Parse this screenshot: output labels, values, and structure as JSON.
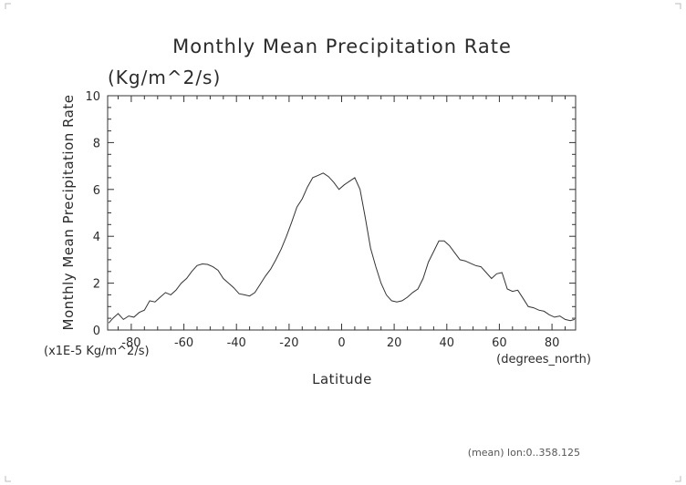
{
  "chart_data": {
    "type": "line",
    "title": "Monthly Mean Precipitation Rate",
    "subtitle": "(Kg/m^2/s)",
    "xlabel": "Latitude",
    "xunits": "(degrees_north)",
    "ylabel": "Monthly Mean Precipitation Rate",
    "yunits": "(x1E-5 Kg/m^2/s)",
    "footnote": "(mean) lon:0..358.125",
    "xlim": [
      -89,
      89
    ],
    "ylim": [
      0,
      10
    ],
    "x_ticks": [
      -80,
      -60,
      -40,
      -20,
      0,
      20,
      40,
      60,
      80
    ],
    "x_tick_labels": [
      "-80",
      "-60",
      "-40",
      "-20",
      "0",
      "20",
      "40",
      "60",
      "80"
    ],
    "y_ticks": [
      0,
      2,
      4,
      6,
      8,
      10
    ],
    "y_tick_labels": [
      "0",
      "2",
      "4",
      "6",
      "8",
      "10"
    ],
    "grid": false,
    "series": [
      {
        "name": "Monthly Mean Precipitation Rate",
        "x": [
          -88.6,
          -87,
          -85,
          -83,
          -81,
          -79,
          -77,
          -75,
          -73,
          -71,
          -69,
          -67,
          -65,
          -63,
          -61,
          -59,
          -57,
          -55,
          -53,
          -51,
          -49,
          -47,
          -45,
          -43,
          -41,
          -39,
          -37,
          -35,
          -33,
          -31,
          -29,
          -27,
          -25,
          -23,
          -21,
          -19,
          -17,
          -15,
          -13,
          -11,
          -9,
          -7,
          -5,
          -3,
          -1,
          1,
          3,
          5,
          7,
          9,
          11,
          13,
          15,
          17,
          19,
          21,
          23,
          25,
          27,
          29,
          31,
          33,
          35,
          37,
          39,
          41,
          43,
          45,
          47,
          49,
          51,
          53,
          55,
          57,
          59,
          61,
          63,
          65,
          67,
          69,
          71,
          73,
          75,
          77,
          79,
          81,
          83,
          85,
          87,
          88.6
        ],
        "values": [
          0.3,
          0.5,
          0.7,
          0.45,
          0.6,
          0.55,
          0.75,
          0.85,
          1.25,
          1.2,
          1.4,
          1.6,
          1.5,
          1.7,
          2.0,
          2.2,
          2.5,
          2.75,
          2.82,
          2.8,
          2.7,
          2.55,
          2.2,
          2.0,
          1.8,
          1.55,
          1.5,
          1.45,
          1.6,
          1.95,
          2.3,
          2.6,
          3.0,
          3.45,
          4.0,
          4.6,
          5.25,
          5.6,
          6.1,
          6.5,
          6.6,
          6.7,
          6.55,
          6.3,
          6.0,
          6.2,
          6.35,
          6.5,
          6.0,
          4.8,
          3.5,
          2.7,
          2.0,
          1.5,
          1.25,
          1.2,
          1.25,
          1.4,
          1.6,
          1.75,
          2.2,
          2.9,
          3.35,
          3.8,
          3.8,
          3.6,
          3.3,
          3.0,
          2.95,
          2.85,
          2.75,
          2.7,
          2.45,
          2.2,
          2.4,
          2.45,
          1.75,
          1.65,
          1.7,
          1.35,
          1.0,
          0.95,
          0.85,
          0.8,
          0.65,
          0.55,
          0.6,
          0.45,
          0.4,
          0.45
        ]
      }
    ]
  }
}
